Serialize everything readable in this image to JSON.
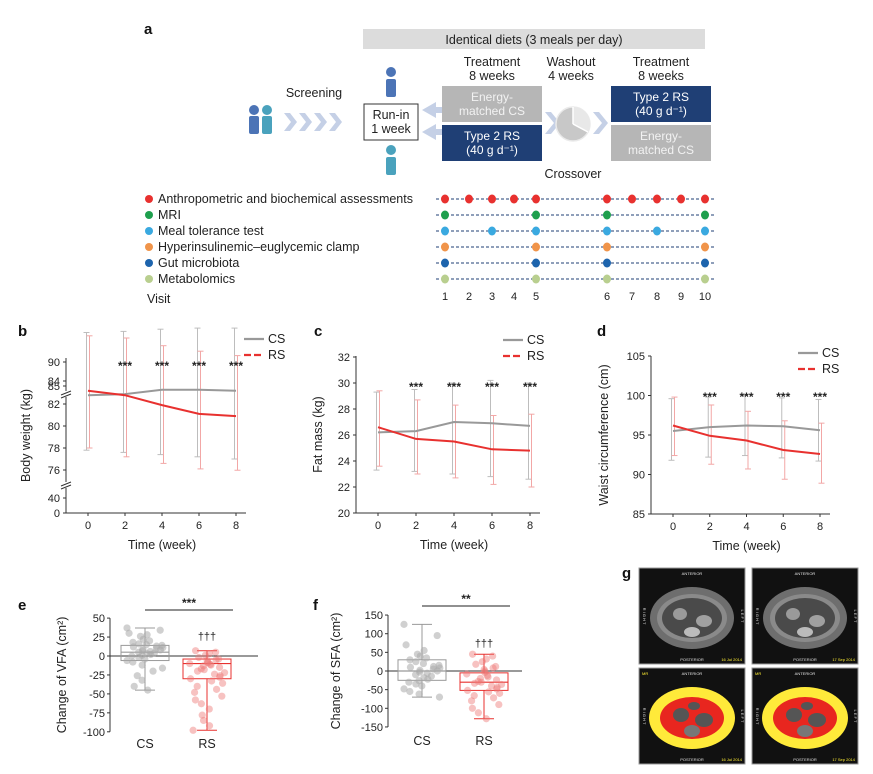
{
  "panels": {
    "a": "a",
    "b": "b",
    "c": "c",
    "d": "d",
    "e": "e",
    "f": "f",
    "g": "g"
  },
  "design": {
    "banner": "Identical diets (3 meals per day)",
    "screening": "Screening",
    "runin": [
      "Run-in",
      "1 week"
    ],
    "treatment1": [
      "Treatment",
      "8 weeks"
    ],
    "washout": [
      "Washout",
      "4 weeks"
    ],
    "treatment2": [
      "Treatment",
      "8 weeks"
    ],
    "box_cs_1": [
      "Energy-",
      "matched CS"
    ],
    "box_rs_1": [
      "Type 2 RS",
      "(40 g d⁻¹)"
    ],
    "box_rs_2": [
      "Type 2 RS",
      "(40 g d⁻¹)"
    ],
    "box_cs_2": [
      "Energy-",
      "matched CS"
    ],
    "crossover": "Crossover",
    "visit_label": "Visit",
    "visits": [
      "1",
      "2",
      "3",
      "4",
      "5",
      "6",
      "7",
      "8",
      "9",
      "10"
    ],
    "colors": {
      "dark_blue": "#1f3f75",
      "grey_box": "#b6b6b6",
      "banner": "#dcdcdc",
      "arrow": "#c5d0e6"
    },
    "assessments": [
      {
        "label": "Anthropometric and biochemical assessments",
        "color": "#e8312f",
        "visits": [
          1,
          2,
          3,
          4,
          5,
          6,
          7,
          8,
          9,
          10
        ]
      },
      {
        "label": "MRI",
        "color": "#1e9f4d",
        "visits": [
          1,
          5,
          6,
          10
        ]
      },
      {
        "label": "Meal tolerance test",
        "color": "#3aa9e0",
        "visits": [
          1,
          3,
          5,
          6,
          8,
          10
        ]
      },
      {
        "label": "Hyperinsulinemic–euglycemic clamp",
        "color": "#f0944a",
        "visits": [
          1,
          5,
          6,
          10
        ]
      },
      {
        "label": "Gut microbiota",
        "color": "#1d64ad",
        "visits": [
          1,
          5,
          6,
          10
        ]
      },
      {
        "label": "Metabolomics",
        "color": "#b9cf8f",
        "visits": [
          1,
          5,
          6,
          10
        ]
      }
    ]
  },
  "chart_data": [
    {
      "panel": "b",
      "type": "line",
      "xlabel": "Time (week)",
      "ylabel": "Body weight (kg)",
      "x": [
        0,
        2,
        4,
        6,
        8
      ],
      "yticks": [
        "0",
        "40",
        "76",
        "78",
        "80",
        "82",
        "84",
        "85",
        "90"
      ],
      "series": [
        {
          "name": "CS",
          "color": "#999999",
          "values": [
            82.8,
            82.9,
            83.3,
            83.3,
            83.2
          ],
          "err_hi": [
            88.5,
            88.6,
            88.8,
            88.9,
            88.9
          ],
          "err_lo": [
            77.8,
            77.6,
            77.4,
            77.2,
            77.0
          ]
        },
        {
          "name": "RS",
          "color": "#e8312f",
          "values": [
            83.2,
            82.8,
            81.9,
            81.1,
            80.9
          ],
          "err_hi": [
            88.2,
            88.0,
            87.3,
            86.8,
            86.4
          ],
          "err_lo": [
            78.0,
            77.2,
            76.6,
            76.1,
            75.7
          ]
        }
      ],
      "stars": [
        "",
        "***",
        "***",
        "***",
        "***"
      ]
    },
    {
      "panel": "c",
      "type": "line",
      "xlabel": "Time (week)",
      "ylabel": "Fat mass (kg)",
      "x": [
        0,
        2,
        4,
        6,
        8
      ],
      "ylim": [
        20,
        32
      ],
      "yticks": [
        20,
        22,
        24,
        26,
        28,
        30,
        32
      ],
      "series": [
        {
          "name": "CS",
          "color": "#999999",
          "values": [
            26.2,
            26.3,
            27.0,
            26.9,
            26.7
          ],
          "err_hi": [
            29.3,
            29.5,
            30.0,
            30.2,
            30.0
          ],
          "err_lo": [
            23.3,
            23.2,
            23.0,
            22.8,
            22.6
          ]
        },
        {
          "name": "RS",
          "color": "#e8312f",
          "values": [
            26.6,
            25.7,
            25.5,
            24.9,
            24.8
          ],
          "err_hi": [
            29.4,
            28.7,
            28.3,
            27.5,
            27.6
          ],
          "err_lo": [
            23.6,
            23.0,
            22.7,
            22.2,
            22.0
          ]
        }
      ],
      "stars": [
        "",
        "***",
        "***",
        "***",
        "***"
      ]
    },
    {
      "panel": "d",
      "type": "line",
      "xlabel": "Time (week)",
      "ylabel": "Waist circumference (cm)",
      "x": [
        0,
        2,
        4,
        6,
        8
      ],
      "ylim": [
        85,
        105
      ],
      "yticks": [
        85,
        90,
        95,
        100,
        105
      ],
      "series": [
        {
          "name": "CS",
          "color": "#999999",
          "values": [
            95.5,
            96.0,
            96.2,
            96.1,
            95.6
          ],
          "err_hi": [
            99.6,
            99.8,
            100.0,
            99.7,
            99.5
          ],
          "err_lo": [
            91.8,
            92.2,
            92.4,
            92.1,
            91.7
          ]
        },
        {
          "name": "RS",
          "color": "#e8312f",
          "values": [
            96.2,
            94.9,
            94.3,
            93.1,
            92.6
          ],
          "err_hi": [
            99.8,
            98.8,
            98.0,
            96.8,
            96.5
          ],
          "err_lo": [
            92.4,
            91.3,
            90.7,
            89.4,
            88.9
          ]
        }
      ],
      "stars": [
        "",
        "***",
        "***",
        "***",
        "***"
      ]
    },
    {
      "panel": "e",
      "type": "box",
      "ylabel": "Change of VFA (cm²)",
      "ylim": [
        -100,
        50
      ],
      "yticks": [
        -100,
        -75,
        -50,
        -25,
        0,
        25,
        50
      ],
      "categories": [
        "CS",
        "RS"
      ],
      "boxes": [
        {
          "name": "CS",
          "color": "#999999",
          "q1": -6,
          "median": 5,
          "q3": 14,
          "min": -45,
          "max": 37,
          "points": [
            37,
            34,
            30,
            28,
            26,
            22,
            20,
            18,
            16,
            15,
            14,
            13,
            12,
            11,
            10,
            9,
            8,
            7,
            6,
            5,
            4,
            3,
            2,
            1,
            0,
            -2,
            -4,
            -6,
            -8,
            -12,
            -16,
            -20,
            -26,
            -32,
            -40,
            -45
          ]
        },
        {
          "name": "RS",
          "color": "#e8312f",
          "q1": -30,
          "median": -10,
          "q3": -4,
          "min": -98,
          "max": 7,
          "points": [
            7,
            5,
            3,
            1,
            -2,
            -4,
            -5,
            -6,
            -8,
            -9,
            -10,
            -11,
            -12,
            -13,
            -15,
            -17,
            -18,
            -20,
            -22,
            -24,
            -26,
            -28,
            -30,
            -33,
            -36,
            -40,
            -44,
            -48,
            -53,
            -58,
            -63,
            -70,
            -78,
            -85,
            -92,
            -98
          ]
        }
      ],
      "comparison": "***",
      "daggers": "†††"
    },
    {
      "panel": "f",
      "type": "box",
      "ylabel": "Change of SFA (cm²)",
      "ylim": [
        -150,
        150
      ],
      "yticks": [
        -150,
        -100,
        -50,
        0,
        50,
        100,
        150
      ],
      "categories": [
        "CS",
        "RS"
      ],
      "boxes": [
        {
          "name": "CS",
          "color": "#999999",
          "q1": -25,
          "median": 0,
          "q3": 30,
          "min": -70,
          "max": 125,
          "points": [
            125,
            95,
            70,
            55,
            45,
            40,
            35,
            30,
            25,
            20,
            15,
            12,
            10,
            8,
            5,
            2,
            0,
            -3,
            -6,
            -10,
            -14,
            -18,
            -22,
            -26,
            -30,
            -35,
            -40,
            -48,
            -55,
            -62,
            -70
          ]
        },
        {
          "name": "RS",
          "color": "#e8312f",
          "q1": -52,
          "median": -30,
          "q3": -5,
          "min": -128,
          "max": 45,
          "points": [
            45,
            40,
            32,
            25,
            18,
            12,
            8,
            4,
            0,
            -4,
            -8,
            -12,
            -16,
            -20,
            -24,
            -28,
            -30,
            -33,
            -36,
            -40,
            -44,
            -48,
            -52,
            -56,
            -60,
            -66,
            -72,
            -80,
            -90,
            -100,
            -112,
            -128
          ]
        }
      ],
      "comparison": "**",
      "daggers": "†††"
    }
  ],
  "mri": {
    "anterior": "ANTERIOR",
    "posterior": "POSTERIOR",
    "right": "R I G H T",
    "left": "L E F T",
    "mr": "MR",
    "stamps": [
      "16 Jul 2014",
      "17 Sep 2014"
    ],
    "colors": {
      "fat": "#ffea3a",
      "visceral": "#e8261f",
      "tissue": "#555555"
    }
  }
}
